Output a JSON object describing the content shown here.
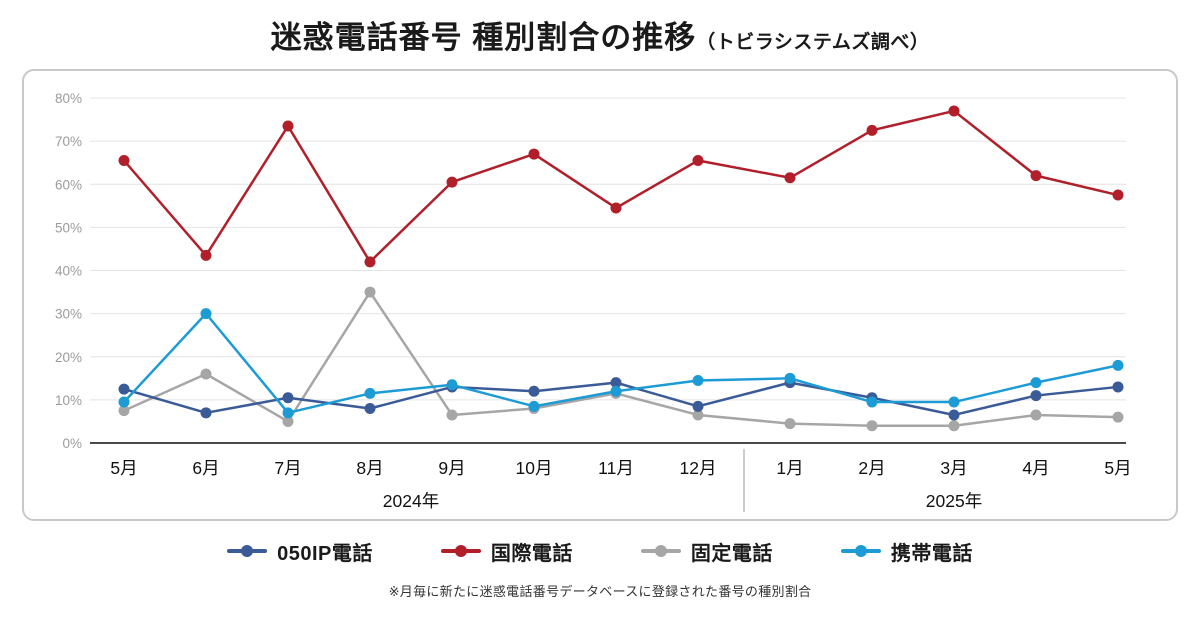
{
  "title": {
    "main": "迷惑電話番号 種別割合の推移",
    "sub": "（トビラシステムズ調べ）"
  },
  "footnote": "※月毎に新たに迷惑電話番号データベースに登録された番号の種別割合",
  "colors": {
    "grid": "#e4e4e4",
    "axis": "#4a4a4a",
    "tick_label": "#9b9b9b",
    "month_label": "#111111",
    "year_label": "#111111",
    "year_divider": "#bbbbbb",
    "card_border": "#c9c9c9"
  },
  "chart_data": {
    "type": "line",
    "categories": [
      "5月",
      "6月",
      "7月",
      "8月",
      "9月",
      "10月",
      "11月",
      "12月",
      "1月",
      "2月",
      "3月",
      "4月",
      "5月"
    ],
    "year_groups": [
      {
        "label": "2024年",
        "start": 0,
        "end": 7
      },
      {
        "label": "2025年",
        "start": 8,
        "end": 12
      }
    ],
    "ylim": [
      0,
      80
    ],
    "ytick_step": 10,
    "ytick_labels": [
      "0%",
      "10%",
      "20%",
      "30%",
      "40%",
      "50%",
      "60%",
      "70%",
      "80%"
    ],
    "grid": true,
    "legend_position": "bottom",
    "series": [
      {
        "name": "050IP電話",
        "color": "#3a5a98",
        "values": [
          12.5,
          7,
          10.5,
          8,
          13,
          12,
          14,
          8.5,
          14,
          10.5,
          6.5,
          11,
          13
        ]
      },
      {
        "name": "国際電話",
        "color": "#b01f2a",
        "values": [
          65.5,
          43.5,
          73.5,
          42,
          60.5,
          67,
          54.5,
          65.5,
          61.5,
          72.5,
          77,
          62,
          57.5
        ]
      },
      {
        "name": "固定電話",
        "color": "#a6a6a6",
        "values": [
          7.5,
          16,
          5,
          35,
          6.5,
          8,
          11.5,
          6.5,
          4.5,
          4,
          4,
          6.5,
          6
        ]
      },
      {
        "name": "携帯電話",
        "color": "#1d9bd5",
        "values": [
          9.5,
          30,
          7,
          11.5,
          13.5,
          8.5,
          12,
          14.5,
          15,
          9.5,
          9.5,
          14,
          18
        ]
      }
    ],
    "draw_order": [
      2,
      0,
      3,
      1
    ]
  }
}
